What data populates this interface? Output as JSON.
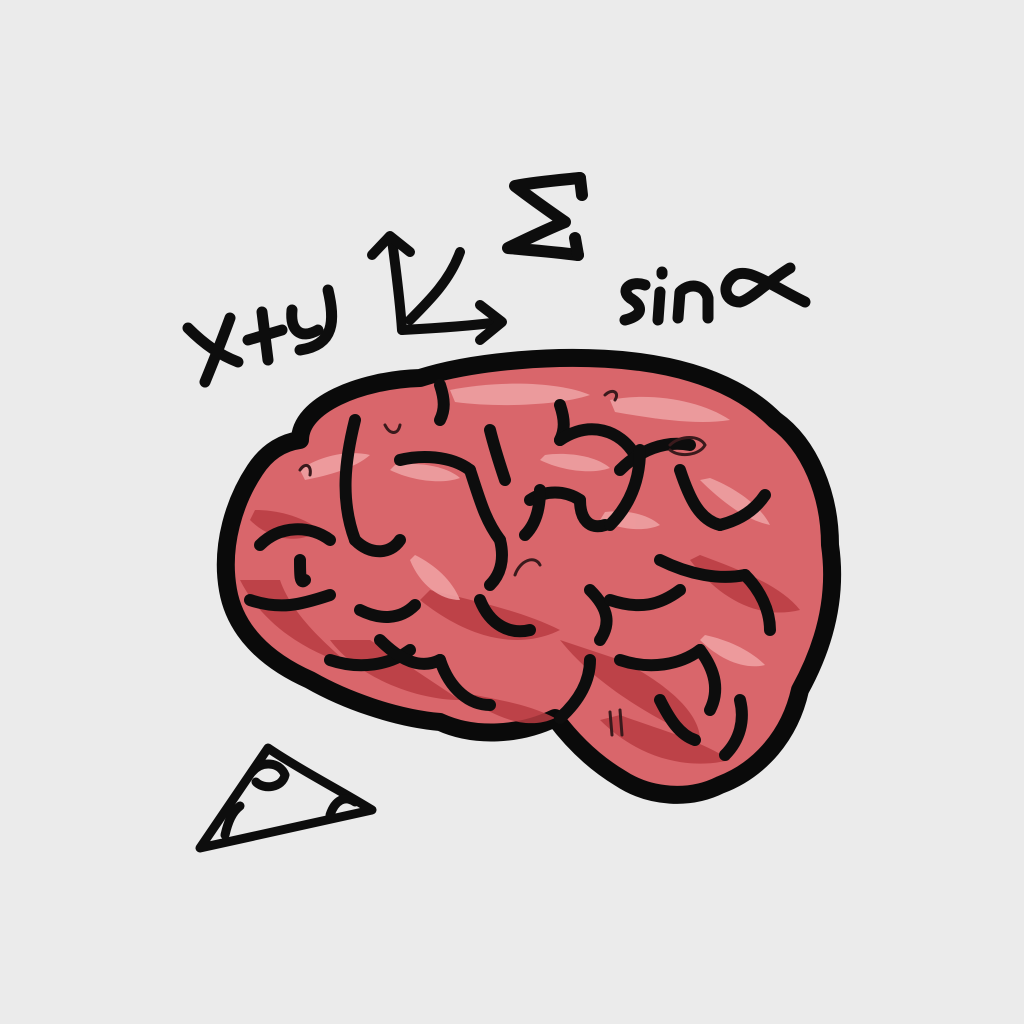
{
  "illustration": {
    "background_color": "#ebebeb",
    "brain_color": "#d9666b",
    "brain_shadow_color": "#b93c42",
    "brain_highlight_color": "#eea0a2",
    "ink_color": "#0d0d0d",
    "doodles": {
      "expression": "x+y",
      "sum_symbol": "Σ",
      "trig": "sinα",
      "axes_icon": "coordinate-axes-icon",
      "triangle_icon": "triangle-ruler-icon"
    }
  }
}
